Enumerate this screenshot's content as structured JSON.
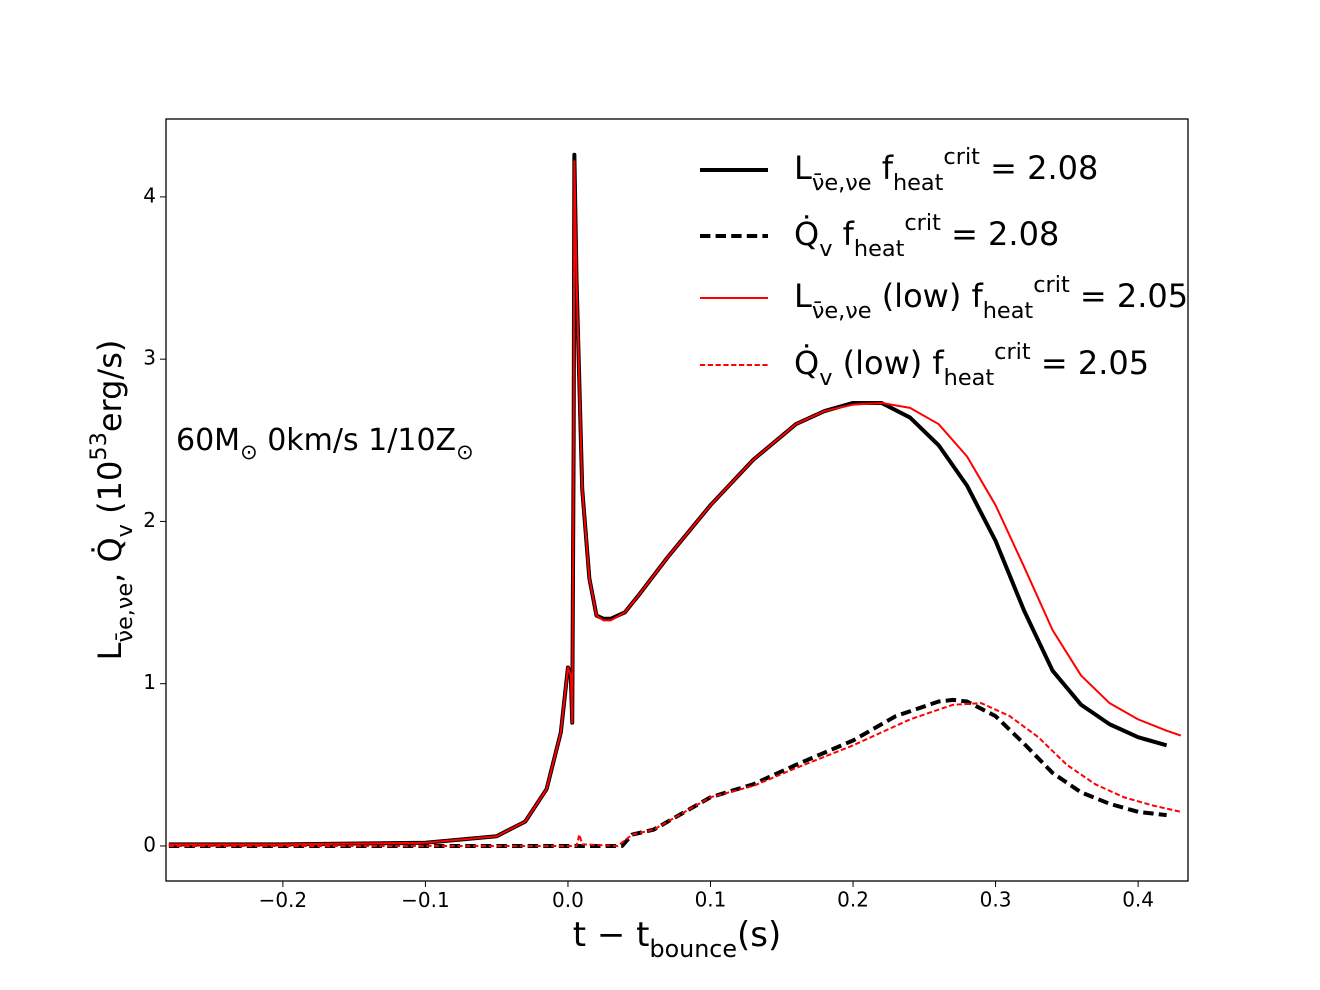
{
  "chart_data": {
    "type": "line",
    "xlabel": "t − t_{bounce}(s)",
    "ylabel": "L_{ν̄e,νe},   Q̇_{v} (10^{53}erg/s)",
    "annotation": "60M_{⊙} 0km/s 1/10Z_{⊙}",
    "xlim": [
      -0.282,
      0.435
    ],
    "ylim": [
      -0.216,
      4.48
    ],
    "xticks": [
      {
        "value": -0.2,
        "label": "−0.2"
      },
      {
        "value": -0.1,
        "label": "−0.1"
      },
      {
        "value": 0,
        "label": "0.0"
      },
      0.1,
      0.2,
      0.3,
      0.4
    ],
    "yticks": [
      0,
      1,
      2,
      3,
      4
    ],
    "grid": false,
    "legend": "upper right",
    "series": [
      {
        "name": "L_{ν̄e,νe} f_{heat}^{crit} = 2.08",
        "color": "#000000",
        "width": 4,
        "dashed": false,
        "x": [
          -0.28,
          -0.2,
          -0.1,
          -0.05,
          -0.03,
          -0.015,
          -0.005,
          0.0,
          0.002,
          0.003,
          0.004,
          0.0045,
          0.006,
          0.01,
          0.015,
          0.02,
          0.025,
          0.03,
          0.04,
          0.05,
          0.07,
          0.1,
          0.13,
          0.16,
          0.18,
          0.2,
          0.22,
          0.24,
          0.26,
          0.28,
          0.3,
          0.32,
          0.34,
          0.36,
          0.38,
          0.4,
          0.42
        ],
        "values": [
          0.01,
          0.01,
          0.02,
          0.06,
          0.15,
          0.35,
          0.7,
          1.1,
          1.05,
          0.76,
          2.5,
          4.26,
          3.5,
          2.2,
          1.65,
          1.42,
          1.4,
          1.4,
          1.44,
          1.55,
          1.78,
          2.1,
          2.38,
          2.6,
          2.68,
          2.73,
          2.73,
          2.64,
          2.47,
          2.22,
          1.88,
          1.45,
          1.08,
          0.87,
          0.75,
          0.67,
          0.62
        ]
      },
      {
        "name": "Q̇_{v} f_{heat}^{crit} = 2.08",
        "color": "#000000",
        "width": 4,
        "dashed": true,
        "x": [
          -0.28,
          0.03,
          0.038,
          0.045,
          0.06,
          0.08,
          0.1,
          0.13,
          0.16,
          0.2,
          0.23,
          0.26,
          0.27,
          0.28,
          0.3,
          0.32,
          0.34,
          0.36,
          0.38,
          0.4,
          0.42
        ],
        "values": [
          0,
          0,
          0,
          0.07,
          0.1,
          0.2,
          0.3,
          0.38,
          0.5,
          0.65,
          0.8,
          0.89,
          0.9,
          0.89,
          0.8,
          0.63,
          0.45,
          0.33,
          0.26,
          0.21,
          0.19
        ]
      },
      {
        "name": "L_{ν̄e,νe} (low) f_{heat}^{crit} = 2.05",
        "color": "#ff0000",
        "width": 2,
        "dashed": false,
        "x": [
          -0.28,
          -0.2,
          -0.1,
          -0.05,
          -0.03,
          -0.015,
          -0.005,
          0.0,
          0.002,
          0.003,
          0.004,
          0.0045,
          0.006,
          0.01,
          0.015,
          0.02,
          0.025,
          0.03,
          0.04,
          0.05,
          0.07,
          0.1,
          0.13,
          0.16,
          0.18,
          0.2,
          0.22,
          0.24,
          0.26,
          0.28,
          0.3,
          0.32,
          0.34,
          0.36,
          0.38,
          0.4,
          0.42,
          0.43
        ],
        "values": [
          0.01,
          0.01,
          0.02,
          0.06,
          0.15,
          0.35,
          0.7,
          1.1,
          1.05,
          0.76,
          2.5,
          4.22,
          3.5,
          2.2,
          1.65,
          1.42,
          1.39,
          1.39,
          1.44,
          1.55,
          1.78,
          2.1,
          2.38,
          2.6,
          2.68,
          2.72,
          2.73,
          2.7,
          2.6,
          2.4,
          2.1,
          1.72,
          1.33,
          1.05,
          0.88,
          0.78,
          0.71,
          0.68
        ]
      },
      {
        "name": "Q̇_{v} (low) f_{heat}^{crit} = 2.05",
        "color": "#ff0000",
        "width": 2,
        "dashed": true,
        "x": [
          -0.28,
          0.006,
          0.008,
          0.01,
          0.035,
          0.045,
          0.06,
          0.08,
          0.1,
          0.13,
          0.16,
          0.2,
          0.24,
          0.27,
          0.29,
          0.31,
          0.33,
          0.35,
          0.37,
          0.39,
          0.41,
          0.43
        ],
        "values": [
          0,
          0,
          0.07,
          0.01,
          0,
          0.07,
          0.1,
          0.2,
          0.3,
          0.37,
          0.48,
          0.62,
          0.78,
          0.87,
          0.88,
          0.8,
          0.67,
          0.5,
          0.38,
          0.3,
          0.25,
          0.21
        ]
      }
    ]
  }
}
